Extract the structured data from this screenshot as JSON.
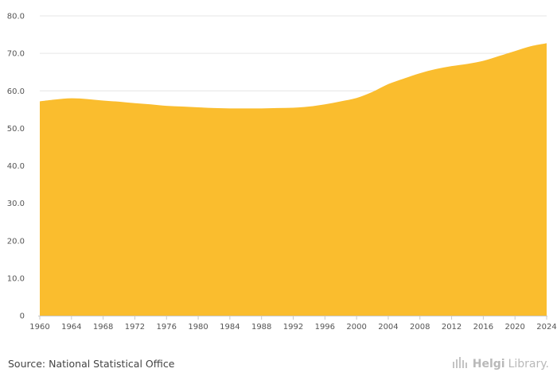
{
  "chart_data": {
    "type": "area",
    "title": "",
    "xlabel": "",
    "ylabel": "",
    "x": [
      1960,
      1962,
      1964,
      1966,
      1968,
      1970,
      1972,
      1974,
      1976,
      1978,
      1980,
      1982,
      1984,
      1986,
      1988,
      1990,
      1992,
      1994,
      1996,
      1998,
      2000,
      2002,
      2004,
      2006,
      2008,
      2010,
      2012,
      2014,
      2016,
      2018,
      2020,
      2022,
      2024
    ],
    "y": [
      57.2,
      57.7,
      58.0,
      57.8,
      57.4,
      57.1,
      56.7,
      56.4,
      56.0,
      55.8,
      55.6,
      55.4,
      55.3,
      55.3,
      55.3,
      55.4,
      55.5,
      55.8,
      56.4,
      57.2,
      58.1,
      59.7,
      61.8,
      63.3,
      64.7,
      65.8,
      66.6,
      67.2,
      68.0,
      69.3,
      70.6,
      71.9,
      72.7
    ],
    "xticks": [
      "1960",
      "1964",
      "1968",
      "1972",
      "1976",
      "1980",
      "1984",
      "1988",
      "1992",
      "1996",
      "2000",
      "2004",
      "2008",
      "2012",
      "2016",
      "2020",
      "2024"
    ],
    "yticks": [
      "0",
      "10.0",
      "20.0",
      "30.0",
      "40.0",
      "50.0",
      "60.0",
      "70.0",
      "80.0"
    ],
    "xlim": [
      1960,
      2024
    ],
    "ylim": [
      0,
      80
    ],
    "grid": "horizontal",
    "color": "#FABD2E",
    "gridline_color": "#e6e6e6",
    "axis_color": "#c8c8c8"
  },
  "footer": {
    "source": "Source: National Statistical Office",
    "brand_bold": "Helgi",
    "brand_light": "Library."
  }
}
